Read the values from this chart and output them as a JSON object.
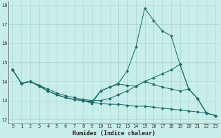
{
  "xlabel": "Humidex (Indice chaleur)",
  "bg_color": "#c8eeea",
  "grid_color": "#b0d8d4",
  "line_color": "#1a6e6a",
  "xlim": [
    -0.5,
    23.5
  ],
  "ylim": [
    11.8,
    18.2
  ],
  "yticks": [
    12,
    13,
    14,
    15,
    16,
    17,
    18
  ],
  "xticks": [
    0,
    1,
    2,
    3,
    4,
    5,
    6,
    7,
    8,
    9,
    10,
    11,
    12,
    13,
    14,
    15,
    16,
    17,
    18,
    19,
    20,
    21,
    22,
    23
  ],
  "lines": [
    {
      "x": [
        0,
        1,
        2,
        3,
        4,
        5,
        6,
        7,
        8,
        9,
        10,
        11,
        12,
        13,
        14,
        15,
        16,
        17,
        18,
        19,
        20,
        21,
        22,
        23
      ],
      "y": [
        14.6,
        13.9,
        14.0,
        13.8,
        13.5,
        13.3,
        13.15,
        13.05,
        13.0,
        12.9,
        12.85,
        12.8,
        12.8,
        12.75,
        12.7,
        12.7,
        12.65,
        12.6,
        12.55,
        12.5,
        12.45,
        12.4,
        12.35,
        12.2
      ]
    },
    {
      "x": [
        0,
        1,
        2,
        3,
        4,
        5,
        6,
        7,
        8,
        9,
        10,
        11,
        12,
        13,
        14,
        15,
        16,
        17,
        18,
        19,
        20,
        21,
        22,
        23
      ],
      "y": [
        14.6,
        13.9,
        14.0,
        13.8,
        13.6,
        13.4,
        13.25,
        13.15,
        13.05,
        13.0,
        13.0,
        13.1,
        13.3,
        13.5,
        13.75,
        14.0,
        14.2,
        14.4,
        14.6,
        14.9,
        13.6,
        13.1,
        12.35,
        12.2
      ]
    },
    {
      "x": [
        0,
        1,
        2,
        3,
        4,
        5,
        6,
        7,
        8,
        9,
        10,
        11,
        12,
        13,
        14,
        15,
        16,
        17,
        18,
        19,
        20,
        21,
        22,
        23
      ],
      "y": [
        14.6,
        13.9,
        14.0,
        13.75,
        13.5,
        13.3,
        13.15,
        13.05,
        13.0,
        12.95,
        13.5,
        13.7,
        13.85,
        13.8,
        13.75,
        14.0,
        13.85,
        13.7,
        13.6,
        13.5,
        13.6,
        13.1,
        12.35,
        12.2
      ]
    },
    {
      "x": [
        0,
        1,
        2,
        3,
        4,
        5,
        6,
        7,
        8,
        9,
        10,
        11,
        12,
        13,
        14,
        15,
        16,
        17,
        18,
        19,
        20,
        21,
        22,
        23
      ],
      "y": [
        14.6,
        13.9,
        14.0,
        13.75,
        13.5,
        13.3,
        13.15,
        13.05,
        13.0,
        12.85,
        13.5,
        13.7,
        13.9,
        14.55,
        15.8,
        17.85,
        17.2,
        16.65,
        16.4,
        14.9,
        13.6,
        13.1,
        12.35,
        12.2
      ]
    }
  ]
}
